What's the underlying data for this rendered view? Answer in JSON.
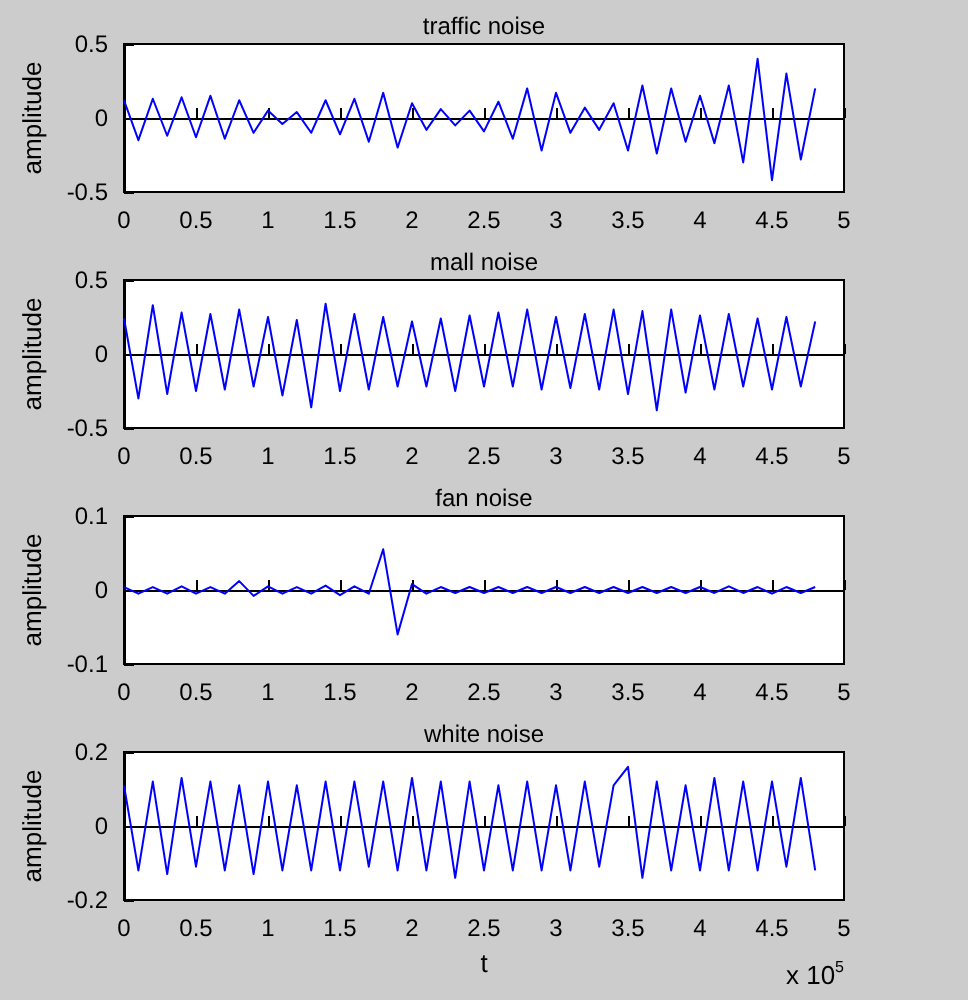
{
  "chart_data": [
    {
      "type": "line",
      "title": "traffic noise",
      "ylabel": "amplitude",
      "x": [
        0,
        0.1,
        0.2,
        0.3,
        0.4,
        0.5,
        0.6,
        0.7,
        0.8,
        0.9,
        1,
        1.1,
        1.2,
        1.3,
        1.4,
        1.5,
        1.6,
        1.7,
        1.8,
        1.9,
        2,
        2.1,
        2.2,
        2.3,
        2.4,
        2.5,
        2.6,
        2.7,
        2.8,
        2.9,
        3,
        3.1,
        3.2,
        3.3,
        3.4,
        3.5,
        3.6,
        3.7,
        3.8,
        3.9,
        4,
        4.1,
        4.2,
        4.3,
        4.4,
        4.5,
        4.6,
        4.7,
        4.8
      ],
      "series": [
        {
          "color": "#0000ff",
          "values": [
            0.12,
            -0.15,
            0.13,
            -0.12,
            0.14,
            -0.13,
            0.15,
            -0.14,
            0.12,
            -0.1,
            0.05,
            -0.04,
            0.04,
            -0.1,
            0.12,
            -0.11,
            0.13,
            -0.16,
            0.17,
            -0.2,
            0.1,
            -0.08,
            0.06,
            -0.05,
            0.05,
            -0.09,
            0.11,
            -0.14,
            0.2,
            -0.22,
            0.17,
            -0.1,
            0.07,
            -0.08,
            0.1,
            -0.22,
            0.22,
            -0.24,
            0.2,
            -0.16,
            0.15,
            -0.17,
            0.22,
            -0.3,
            0.4,
            -0.42,
            0.3,
            -0.28,
            0.2
          ]
        }
      ],
      "xlim": [
        0,
        5
      ],
      "xticks": [
        0,
        0.5,
        1,
        1.5,
        2,
        2.5,
        3,
        3.5,
        4,
        4.5,
        5
      ],
      "ylim": [
        -0.5,
        0.5
      ],
      "yticks": [
        -0.5,
        0,
        0.5
      ]
    },
    {
      "type": "line",
      "title": "mall noise",
      "ylabel": "amplitude",
      "x": [
        0,
        0.1,
        0.2,
        0.3,
        0.4,
        0.5,
        0.6,
        0.7,
        0.8,
        0.9,
        1,
        1.1,
        1.2,
        1.3,
        1.4,
        1.5,
        1.6,
        1.7,
        1.8,
        1.9,
        2,
        2.1,
        2.2,
        2.3,
        2.4,
        2.5,
        2.6,
        2.7,
        2.8,
        2.9,
        3,
        3.1,
        3.2,
        3.3,
        3.4,
        3.5,
        3.6,
        3.7,
        3.8,
        3.9,
        4,
        4.1,
        4.2,
        4.3,
        4.4,
        4.5,
        4.6,
        4.7,
        4.8
      ],
      "series": [
        {
          "color": "#0000ff",
          "values": [
            0.24,
            -0.3,
            0.33,
            -0.27,
            0.28,
            -0.25,
            0.27,
            -0.24,
            0.3,
            -0.22,
            0.25,
            -0.28,
            0.23,
            -0.36,
            0.34,
            -0.25,
            0.27,
            -0.24,
            0.25,
            -0.22,
            0.22,
            -0.22,
            0.24,
            -0.25,
            0.26,
            -0.22,
            0.28,
            -0.22,
            0.3,
            -0.24,
            0.25,
            -0.23,
            0.27,
            -0.24,
            0.3,
            -0.27,
            0.29,
            -0.38,
            0.3,
            -0.26,
            0.26,
            -0.24,
            0.27,
            -0.22,
            0.24,
            -0.24,
            0.25,
            -0.22,
            0.22
          ]
        }
      ],
      "xlim": [
        0,
        5
      ],
      "xticks": [
        0,
        0.5,
        1,
        1.5,
        2,
        2.5,
        3,
        3.5,
        4,
        4.5,
        5
      ],
      "ylim": [
        -0.5,
        0.5
      ],
      "yticks": [
        -0.5,
        0,
        0.5
      ]
    },
    {
      "type": "line",
      "title": "fan noise",
      "ylabel": "amplitude",
      "x": [
        0,
        0.1,
        0.2,
        0.3,
        0.4,
        0.5,
        0.6,
        0.7,
        0.8,
        0.9,
        1,
        1.1,
        1.2,
        1.3,
        1.4,
        1.5,
        1.6,
        1.7,
        1.8,
        1.9,
        2,
        2.1,
        2.2,
        2.3,
        2.4,
        2.5,
        2.6,
        2.7,
        2.8,
        2.9,
        3,
        3.1,
        3.2,
        3.3,
        3.4,
        3.5,
        3.6,
        3.7,
        3.8,
        3.9,
        4,
        4.1,
        4.2,
        4.3,
        4.4,
        4.5,
        4.6,
        4.7,
        4.8
      ],
      "series": [
        {
          "color": "#0000ff",
          "values": [
            0.004,
            -0.005,
            0.004,
            -0.005,
            0.005,
            -0.005,
            0.004,
            -0.005,
            0.012,
            -0.008,
            0.005,
            -0.005,
            0.004,
            -0.005,
            0.006,
            -0.007,
            0.005,
            -0.005,
            0.055,
            -0.06,
            0.008,
            -0.005,
            0.004,
            -0.004,
            0.004,
            -0.004,
            0.004,
            -0.004,
            0.004,
            -0.004,
            0.004,
            -0.004,
            0.004,
            -0.004,
            0.004,
            -0.004,
            0.004,
            -0.004,
            0.004,
            -0.004,
            0.004,
            -0.004,
            0.005,
            -0.004,
            0.004,
            -0.005,
            0.004,
            -0.004,
            0.004
          ]
        }
      ],
      "xlim": [
        0,
        5
      ],
      "xticks": [
        0,
        0.5,
        1,
        1.5,
        2,
        2.5,
        3,
        3.5,
        4,
        4.5,
        5
      ],
      "ylim": [
        -0.1,
        0.1
      ],
      "yticks": [
        -0.1,
        0,
        0.1
      ]
    },
    {
      "type": "line",
      "title": "white noise",
      "xlabel": "t",
      "ylabel": "amplitude",
      "x": [
        0,
        0.1,
        0.2,
        0.3,
        0.4,
        0.5,
        0.6,
        0.7,
        0.8,
        0.9,
        1,
        1.1,
        1.2,
        1.3,
        1.4,
        1.5,
        1.6,
        1.7,
        1.8,
        1.9,
        2,
        2.1,
        2.2,
        2.3,
        2.4,
        2.5,
        2.6,
        2.7,
        2.8,
        2.9,
        3,
        3.1,
        3.2,
        3.3,
        3.4,
        3.5,
        3.6,
        3.7,
        3.8,
        3.9,
        4,
        4.1,
        4.2,
        4.3,
        4.4,
        4.5,
        4.6,
        4.7,
        4.8
      ],
      "series": [
        {
          "color": "#0000ff",
          "values": [
            0.11,
            -0.12,
            0.12,
            -0.13,
            0.13,
            -0.11,
            0.12,
            -0.12,
            0.11,
            -0.13,
            0.12,
            -0.12,
            0.11,
            -0.12,
            0.12,
            -0.12,
            0.12,
            -0.11,
            0.12,
            -0.12,
            0.13,
            -0.12,
            0.12,
            -0.14,
            0.12,
            -0.12,
            0.11,
            -0.12,
            0.12,
            -0.12,
            0.11,
            -0.12,
            0.12,
            -0.11,
            0.11,
            0.16,
            -0.14,
            0.12,
            -0.12,
            0.11,
            -0.12,
            0.13,
            -0.12,
            0.12,
            -0.12,
            0.12,
            -0.11,
            0.13,
            -0.12
          ]
        }
      ],
      "xlim": [
        0,
        5
      ],
      "xticks": [
        0,
        0.5,
        1,
        1.5,
        2,
        2.5,
        3,
        3.5,
        4,
        4.5,
        5
      ],
      "ylim": [
        -0.2,
        0.2
      ],
      "yticks": [
        -0.2,
        0,
        0.2
      ],
      "annotations": [
        "x 10$^{5}$"
      ]
    }
  ]
}
